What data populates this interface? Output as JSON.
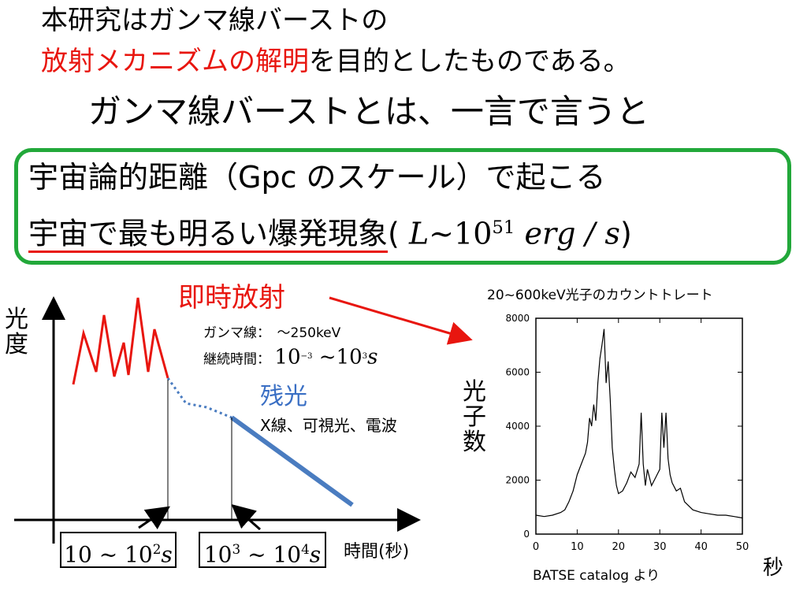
{
  "title": {
    "line1": "本研究はガンマ線バーストの",
    "line2_red": "放射メカニズムの解明",
    "line2_rest": "を目的としたものである。",
    "line3": "ガンマ線バーストとは、一言で言うと"
  },
  "definition": {
    "line1": "宇宙論的距離（Gpc のスケール）で起こる",
    "line2_text": "宇宙で最も明るい爆発現象",
    "formula_open": "(",
    "formula_L": "L",
    "formula_tilde": "~10",
    "formula_exp": "51",
    "formula_unit": "erg / s",
    "formula_close": ")"
  },
  "diagram": {
    "ylabel": "光度",
    "xlabel": "時間(秒)",
    "prompt_label": "即時放射",
    "gamma_label": "ガンマ線：　～250keV",
    "duration_label": "継続時間：",
    "duration_formula": "10",
    "duration_exp1": "−3",
    "duration_mid": " ~10",
    "duration_exp2": "3",
    "duration_unit": "s",
    "afterglow_label": "残光",
    "afterglow_bands": "X線、可視光、電波",
    "box1_a": "10 ~ 10",
    "box1_exp": "2",
    "box1_unit": "s",
    "box2_a": "10",
    "box2_exp1": "3",
    "box2_b": " ~ 10",
    "box2_exp2": "4",
    "box2_unit": "s",
    "colors": {
      "prompt": "#e8160f",
      "afterglow": "#4a7cc0",
      "dotted": "#4a7cc0"
    }
  },
  "chart_data": {
    "type": "line",
    "title": "20~600keV光子のカウントトレート",
    "xlabel": "秒",
    "ylabel": "光子数",
    "xlim": [
      0,
      50
    ],
    "ylim": [
      0,
      8000
    ],
    "xticks": [
      "0",
      "10",
      "20",
      "30",
      "40",
      "50"
    ],
    "yticks": [
      "0",
      "2000",
      "4000",
      "6000",
      "8000"
    ],
    "source": "BATSE  catalog より",
    "x": [
      0,
      2,
      4,
      6,
      7,
      8,
      9,
      10,
      11,
      12,
      12.5,
      13,
      13.5,
      14,
      14.5,
      15,
      15.5,
      16,
      16.5,
      17,
      17.5,
      18,
      18.5,
      19,
      19.5,
      20,
      21,
      22,
      23,
      24,
      25,
      25.5,
      26,
      26.5,
      27,
      28,
      29,
      30,
      30.5,
      31,
      31.5,
      32,
      32.5,
      33,
      34,
      35,
      36,
      38,
      40,
      42,
      44,
      46,
      48,
      50
    ],
    "y": [
      700,
      650,
      700,
      800,
      900,
      1200,
      1600,
      2200,
      2600,
      3000,
      3400,
      4300,
      4000,
      4800,
      4200,
      5600,
      6500,
      7000,
      7600,
      5600,
      6400,
      5000,
      3200,
      2400,
      1800,
      1500,
      1600,
      1900,
      2300,
      2100,
      2600,
      4500,
      2600,
      1800,
      2400,
      1800,
      2100,
      2400,
      4500,
      3200,
      4500,
      2800,
      2200,
      1900,
      1600,
      1700,
      1200,
      900,
      800,
      750,
      700,
      700,
      650,
      600
    ]
  }
}
